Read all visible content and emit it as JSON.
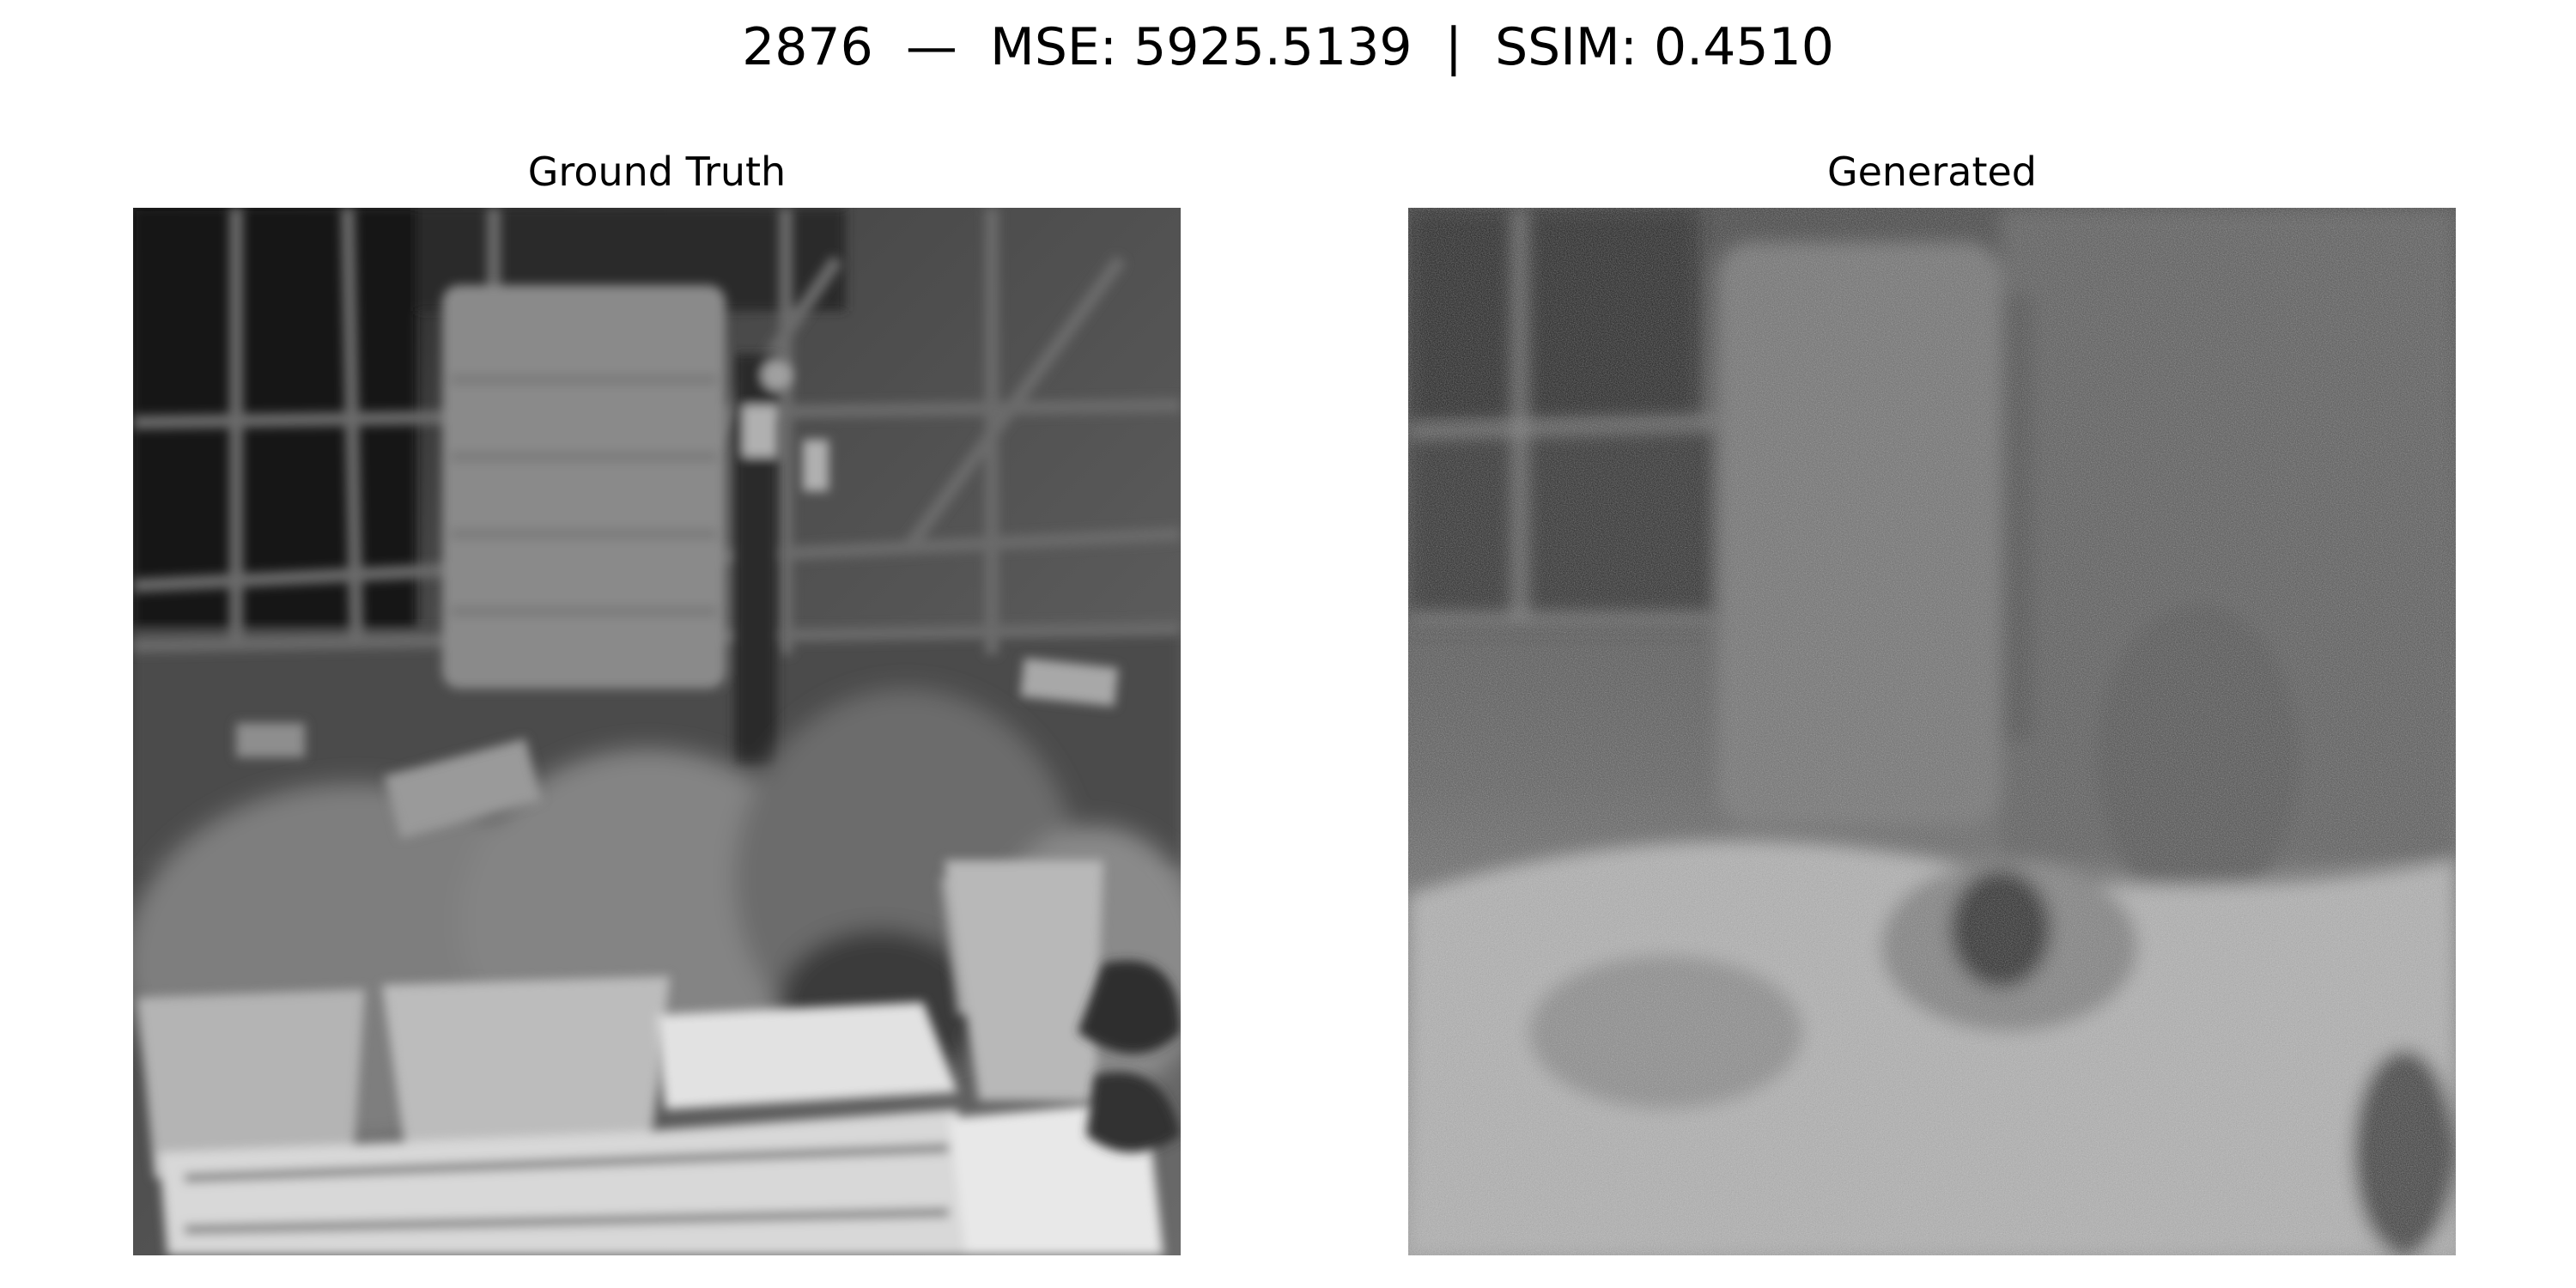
{
  "figure": {
    "suptitle": "2876  —  MSE: 5925.5139  |  SSIM: 0.4510",
    "panels": [
      {
        "title": "Ground Truth",
        "image": "grayscale photo of potted plants with labels in a greenhouse, window frames in background"
      },
      {
        "title": "Generated",
        "image": "noisy grayscale reconstruction of the greenhouse scene"
      }
    ]
  }
}
